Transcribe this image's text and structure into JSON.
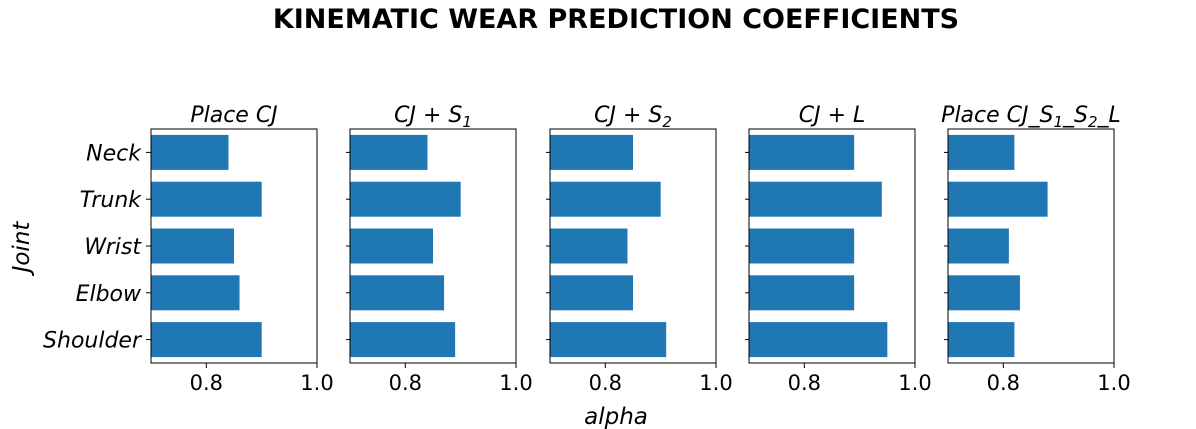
{
  "figure": {
    "title": "KINEMATIC WEAR PREDICTION COEFFICIENTS",
    "ylabel": "Joint",
    "xlabel": "alpha",
    "bar_color": "#1f77b4"
  },
  "chart_data": [
    {
      "type": "bar",
      "orientation": "horizontal",
      "title": {
        "main": "Place CJ",
        "sub": "",
        "tail": ""
      },
      "categories": [
        "Neck",
        "Trunk",
        "Wrist",
        "Elbow",
        "Shoulder"
      ],
      "values": [
        0.84,
        0.9,
        0.85,
        0.86,
        0.9
      ],
      "xlim": [
        0.7,
        1.0
      ],
      "xticks": [
        "0.8",
        "1.0"
      ]
    },
    {
      "type": "bar",
      "orientation": "horizontal",
      "title": {
        "main": "CJ + S",
        "sub": "1",
        "tail": ""
      },
      "categories": [
        "Neck",
        "Trunk",
        "Wrist",
        "Elbow",
        "Shoulder"
      ],
      "values": [
        0.84,
        0.9,
        0.85,
        0.87,
        0.89
      ],
      "xlim": [
        0.7,
        1.0
      ],
      "xticks": [
        "0.8",
        "1.0"
      ]
    },
    {
      "type": "bar",
      "orientation": "horizontal",
      "title": {
        "main": "CJ + S",
        "sub": "2",
        "tail": ""
      },
      "categories": [
        "Neck",
        "Trunk",
        "Wrist",
        "Elbow",
        "Shoulder"
      ],
      "values": [
        0.85,
        0.9,
        0.84,
        0.85,
        0.91
      ],
      "xlim": [
        0.7,
        1.0
      ],
      "xticks": [
        "0.8",
        "1.0"
      ]
    },
    {
      "type": "bar",
      "orientation": "horizontal",
      "title": {
        "main": "CJ + L",
        "sub": "",
        "tail": ""
      },
      "categories": [
        "Neck",
        "Trunk",
        "Wrist",
        "Elbow",
        "Shoulder"
      ],
      "values": [
        0.89,
        0.94,
        0.89,
        0.89,
        0.95
      ],
      "xlim": [
        0.7,
        1.0
      ],
      "xticks": [
        "0.8",
        "1.0"
      ]
    },
    {
      "type": "bar",
      "orientation": "horizontal",
      "title": {
        "main": "Place CJ_S",
        "sub": "1",
        "mid": "_S",
        "sub2": "2",
        "tail": "_L"
      },
      "categories": [
        "Neck",
        "Trunk",
        "Wrist",
        "Elbow",
        "Shoulder"
      ],
      "values": [
        0.82,
        0.88,
        0.81,
        0.83,
        0.82
      ],
      "xlim": [
        0.7,
        1.0
      ],
      "xticks": [
        "0.8",
        "1.0"
      ]
    }
  ]
}
